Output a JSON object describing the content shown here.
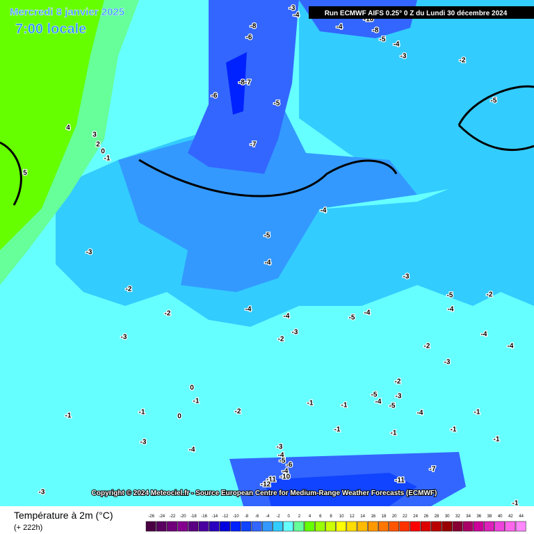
{
  "header": {
    "date": "Mercredi 8 janvier 2025",
    "time": "7:00 locale",
    "run": "Run ECMWF AIFS 0.25° 0 Z du Lundi 30 décembre 2024"
  },
  "copyright": "Copyright © 2024 Meteociel.fr - Source European Centre for Medium-Range Weather Forecasts (ECMWF)",
  "legend": {
    "title": "Température à 2m (°C)",
    "lead": "(+ 222h)",
    "ticks": [
      -26,
      -24,
      -22,
      -20,
      -18,
      -16,
      -14,
      -12,
      -10,
      -8,
      -6,
      -4,
      -2,
      0,
      2,
      4,
      6,
      8,
      10,
      12,
      14,
      16,
      18,
      20,
      22,
      24,
      26,
      28,
      30,
      32,
      34,
      36,
      38,
      40,
      42,
      44
    ],
    "colors": [
      "#4b0044",
      "#5a0060",
      "#70007a",
      "#860090",
      "#5a0082",
      "#4b00a0",
      "#2a00c0",
      "#0000e0",
      "#0022ff",
      "#1144ff",
      "#3366ff",
      "#3399ff",
      "#33ccff",
      "#66ffff",
      "#66ff99",
      "#66ff00",
      "#99ff00",
      "#ccff00",
      "#ffff00",
      "#ffdd00",
      "#ffbb00",
      "#ff9900",
      "#ff7700",
      "#ff5500",
      "#ff3300",
      "#ff0000",
      "#dd0000",
      "#bb0000",
      "#990000",
      "#880033",
      "#aa0066",
      "#cc0099",
      "#dd22bb",
      "#ee44dd",
      "#ff66ee",
      "#ff88ff"
    ]
  },
  "map": {
    "labels": [
      4,
      3,
      2,
      0,
      -1,
      5,
      -3,
      -4,
      -8,
      -6,
      -4,
      -10,
      -8,
      -5,
      -4,
      -3,
      -2,
      -5,
      "-8-7",
      -6,
      -5,
      -7,
      -4,
      -5,
      -4,
      -3,
      -2,
      -2,
      -3,
      -4,
      -4,
      -3,
      -2,
      -5,
      -4,
      -3,
      -5,
      -4,
      -2,
      -4,
      -4,
      -2,
      -3,
      -2,
      -5,
      -4,
      -3,
      -5,
      -4,
      0,
      -1,
      0,
      -1,
      -1,
      -3,
      -4,
      -2,
      -1,
      -1,
      -1,
      -1,
      -1,
      -1,
      -1,
      -3,
      -4,
      -5,
      -6,
      -4,
      -10,
      -11,
      -12,
      -11,
      -7,
      -3,
      -1
    ]
  }
}
